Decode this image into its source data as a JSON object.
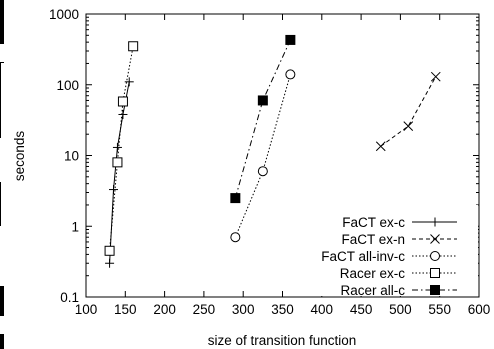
{
  "chart_data": {
    "type": "scatter",
    "title": "",
    "xlabel": "size of transition function",
    "ylabel": "seconds",
    "x_ticks": [
      "100",
      "150",
      "200",
      "250",
      "300",
      "350",
      "400",
      "450",
      "500",
      "550",
      "600"
    ],
    "y_ticks": [
      "0.1",
      "1",
      "10",
      "100",
      "1000"
    ],
    "xlim": [
      100,
      600
    ],
    "ylim": [
      0.1,
      1000
    ],
    "y_scale": "log",
    "grid": false,
    "legend_position": "bottom-right",
    "series": [
      {
        "name": "FaCT ex-c",
        "marker": "plus",
        "line": "solid",
        "points": [
          [
            130,
            0.3
          ],
          [
            135,
            3.3
          ],
          [
            140,
            13
          ],
          [
            147,
            38
          ],
          [
            155,
            110
          ]
        ]
      },
      {
        "name": "FaCT ex-n",
        "marker": "cross",
        "line": "dashed",
        "points": [
          [
            475,
            13.5
          ],
          [
            510,
            26
          ],
          [
            545,
            130
          ]
        ]
      },
      {
        "name": "FaCT all-inv-c",
        "marker": "circle-open",
        "line": "dotted",
        "points": [
          [
            290,
            0.7
          ],
          [
            325,
            6
          ],
          [
            360,
            140
          ]
        ]
      },
      {
        "name": "Racer ex-c",
        "marker": "square-open",
        "line": "dotted",
        "points": [
          [
            130,
            0.45
          ],
          [
            140,
            8
          ],
          [
            147,
            58
          ],
          [
            160,
            350
          ]
        ]
      },
      {
        "name": "Racer all-c",
        "marker": "square-filled",
        "line": "dash-dot",
        "points": [
          [
            290,
            2.5
          ],
          [
            325,
            60
          ],
          [
            360,
            430
          ]
        ]
      }
    ]
  }
}
